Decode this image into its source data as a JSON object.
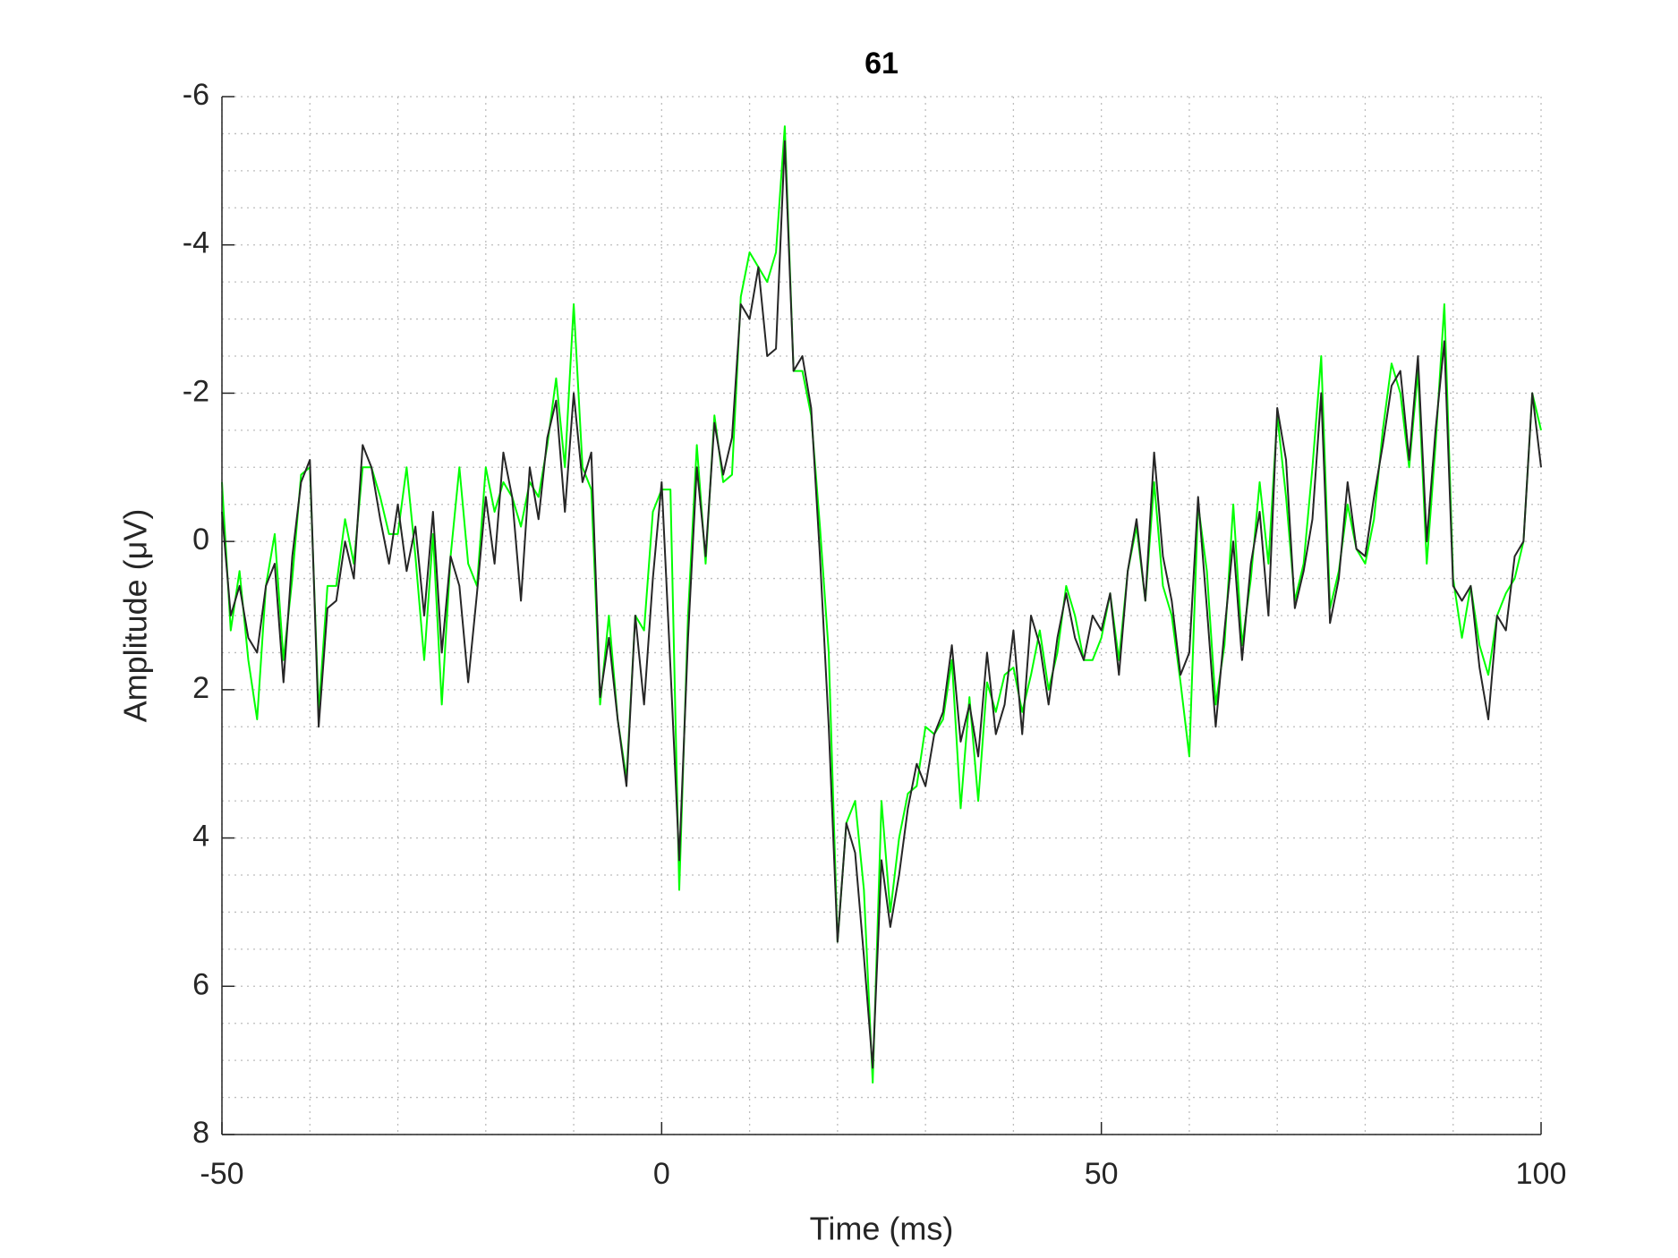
{
  "chart_data": {
    "type": "line",
    "title": "61",
    "xlabel": "Time (ms)",
    "ylabel": "Amplitude (μV)",
    "x": [
      -50,
      -49,
      -48,
      -47,
      -46,
      -45,
      -44,
      -43,
      -42,
      -41,
      -40,
      -39,
      -38,
      -37,
      -36,
      -35,
      -34,
      -33,
      -32,
      -31,
      -30,
      -29,
      -28,
      -27,
      -26,
      -25,
      -24,
      -23,
      -22,
      -21,
      -20,
      -19,
      -18,
      -17,
      -16,
      -15,
      -14,
      -13,
      -12,
      -11,
      -10,
      -9,
      -8,
      -7,
      -6,
      -5,
      -4,
      -3,
      -2,
      -1,
      0,
      1,
      2,
      3,
      4,
      5,
      6,
      7,
      8,
      9,
      10,
      11,
      12,
      13,
      14,
      15,
      16,
      17,
      18,
      19,
      20,
      21,
      22,
      23,
      24,
      25,
      26,
      27,
      28,
      29,
      30,
      31,
      32,
      33,
      34,
      35,
      36,
      37,
      38,
      39,
      40,
      41,
      42,
      43,
      44,
      45,
      46,
      47,
      48,
      49,
      50,
      51,
      52,
      53,
      54,
      55,
      56,
      57,
      58,
      59,
      60,
      61,
      62,
      63,
      64,
      65,
      66,
      67,
      68,
      69,
      70,
      71,
      72,
      73,
      74,
      75,
      76,
      77,
      78,
      79,
      80,
      81,
      82,
      83,
      84,
      85,
      86,
      87,
      88,
      89,
      90,
      91,
      92,
      93,
      94,
      95,
      96,
      97,
      98,
      99,
      100
    ],
    "series": [
      {
        "color": "#00ff00",
        "values": [
          -0.8,
          1.2,
          0.4,
          1.6,
          2.4,
          0.6,
          -0.1,
          1.6,
          0.5,
          -0.9,
          -1.0,
          2.3,
          0.6,
          0.6,
          -0.3,
          0.3,
          -1.0,
          -1.0,
          -0.6,
          -0.1,
          -0.1,
          -1.0,
          0.2,
          1.6,
          -0.1,
          2.2,
          0.2,
          -1.0,
          0.3,
          0.6,
          -1.0,
          -0.4,
          -0.8,
          -0.6,
          -0.2,
          -0.8,
          -0.6,
          -1.3,
          -2.2,
          -1.0,
          -3.2,
          -1.0,
          -0.7,
          2.2,
          1.0,
          2.4,
          3.2,
          1.0,
          1.2,
          -0.4,
          -0.7,
          -0.7,
          4.7,
          1.0,
          -1.3,
          0.3,
          -1.7,
          -0.8,
          -0.9,
          -3.3,
          -3.9,
          -3.7,
          -3.5,
          -3.9,
          -5.6,
          -2.3,
          -2.3,
          -1.7,
          -0.2,
          1.5,
          5.4,
          3.8,
          3.5,
          4.7,
          7.3,
          3.5,
          5.0,
          4.0,
          3.4,
          3.3,
          2.5,
          2.6,
          2.4,
          1.6,
          3.6,
          2.1,
          3.5,
          1.9,
          2.3,
          1.8,
          1.7,
          2.3,
          1.8,
          1.2,
          2.0,
          1.5,
          0.6,
          1.0,
          1.6,
          1.6,
          1.3,
          0.7,
          1.6,
          0.4,
          -0.2,
          0.8,
          -0.8,
          0.6,
          1.0,
          1.9,
          2.9,
          -0.5,
          0.4,
          2.2,
          1.4,
          -0.5,
          1.4,
          0.5,
          -0.8,
          0.3,
          -1.7,
          -0.6,
          0.8,
          0.3,
          -1.0,
          -2.5,
          0.9,
          0.4,
          -0.5,
          0.1,
          0.3,
          -0.3,
          -1.5,
          -2.4,
          -2.0,
          -1.0,
          -2.3,
          0.3,
          -1.3,
          -3.2,
          0.5,
          1.3,
          0.6,
          1.4,
          1.8,
          1.0,
          0.7,
          0.5,
          0.0,
          -2.0,
          -1.5
        ]
      },
      {
        "color": "#262626",
        "values": [
          -0.4,
          1.0,
          0.6,
          1.3,
          1.5,
          0.6,
          0.3,
          1.9,
          0.2,
          -0.8,
          -1.1,
          2.5,
          0.9,
          0.8,
          0,
          0.5,
          -1.3,
          -1.0,
          -0.3,
          0.3,
          -0.5,
          0.4,
          -0.2,
          1.0,
          -0.4,
          1.5,
          0.2,
          0.6,
          1.9,
          0.7,
          -0.6,
          0.3,
          -1.2,
          -0.6,
          0.8,
          -1.0,
          -0.3,
          -1.4,
          -1.9,
          -0.4,
          -2.0,
          -0.8,
          -1.2,
          2.1,
          1.3,
          2.4,
          3.3,
          1.0,
          2.2,
          0.5,
          -0.8,
          1.7,
          4.3,
          1.3,
          -1.0,
          0.2,
          -1.6,
          -0.9,
          -1.4,
          -3.2,
          -3.0,
          -3.7,
          -2.5,
          -2.6,
          -5.4,
          -2.3,
          -2.5,
          -1.8,
          0.2,
          2.5,
          5.4,
          3.8,
          4.2,
          5.6,
          7.1,
          4.3,
          5.2,
          4.5,
          3.6,
          3.0,
          3.3,
          2.6,
          2.3,
          1.4,
          2.7,
          2.2,
          2.9,
          1.5,
          2.6,
          2.2,
          1.2,
          2.6,
          1.0,
          1.4,
          2.2,
          1.3,
          0.7,
          1.3,
          1.6,
          1.0,
          1.2,
          0.7,
          1.8,
          0.4,
          -0.3,
          0.8,
          -1.2,
          0.2,
          0.8,
          1.8,
          1.5,
          -0.6,
          0.9,
          2.5,
          1.2,
          0.0,
          1.6,
          0.3,
          -0.4,
          1.0,
          -1.8,
          -1.1,
          0.9,
          0.4,
          -0.3,
          -2.0,
          1.1,
          0.5,
          -0.8,
          0.1,
          0.2,
          -0.6,
          -1.3,
          -2.1,
          -2.3,
          -1.1,
          -2.5,
          0.0,
          -1.5,
          -2.7,
          0.6,
          0.8,
          0.6,
          1.7,
          2.4,
          1.0,
          1.2,
          0.2,
          0.0,
          -2.0,
          -1.0
        ]
      }
    ],
    "xlim": [
      -50,
      100
    ],
    "xticks": [
      -50,
      0,
      50,
      100
    ],
    "ylim": [
      -6,
      8
    ],
    "yticks": [
      -6,
      -4,
      -2,
      0,
      2,
      4,
      6,
      8
    ],
    "y_reversed": true,
    "grid": true,
    "minor_grid": true
  }
}
